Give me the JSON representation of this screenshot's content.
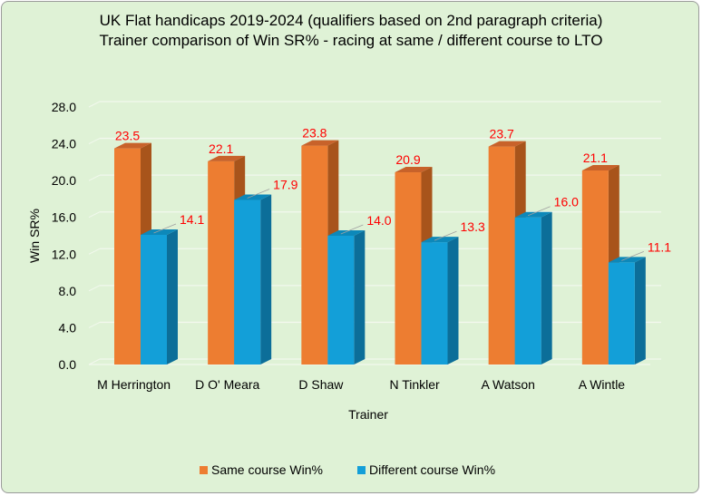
{
  "chart_data": {
    "type": "bar",
    "title_lines": [
      "UK Flat handicaps 2019-2024 (qualifiers based on 2nd paragraph criteria)",
      "Trainer comparison of Win SR% - racing at same / different course to LTO"
    ],
    "xlabel": "Trainer",
    "ylabel": "Win SR%",
    "categories": [
      "M Herrington",
      "D O' Meara",
      "D Shaw",
      "N Tinkler",
      "A Watson",
      "A Wintle"
    ],
    "series": [
      {
        "name": "Same course Win%",
        "values": [
          23.5,
          22.1,
          23.8,
          20.9,
          23.7,
          21.1
        ],
        "labels": [
          "23.5",
          "22.1",
          "23.8",
          "20.9",
          "23.7",
          "21.1"
        ]
      },
      {
        "name": "Different course Win%",
        "values": [
          14.1,
          17.9,
          14.0,
          13.3,
          16.0,
          11.1
        ],
        "labels": [
          "14.1",
          "17.9",
          "14.0",
          "13.3",
          "16.0",
          "11.1"
        ]
      }
    ],
    "yticks": [
      "0.0",
      "4.0",
      "8.0",
      "12.0",
      "16.0",
      "20.0",
      "24.0",
      "28.0"
    ],
    "ylim": [
      0,
      28
    ],
    "grid": true,
    "legend_position": "bottom",
    "bar_style": "3d-column",
    "colors": {
      "series": [
        "#ed7d31",
        "#139fd8"
      ],
      "series_side": [
        "#a8541b",
        "#0c6e99"
      ],
      "series_top": [
        "#c8622a",
        "#0d88b9"
      ],
      "data_label": "#ff0000",
      "background": "#dff2d6",
      "grid": "#f2f8ee"
    }
  }
}
